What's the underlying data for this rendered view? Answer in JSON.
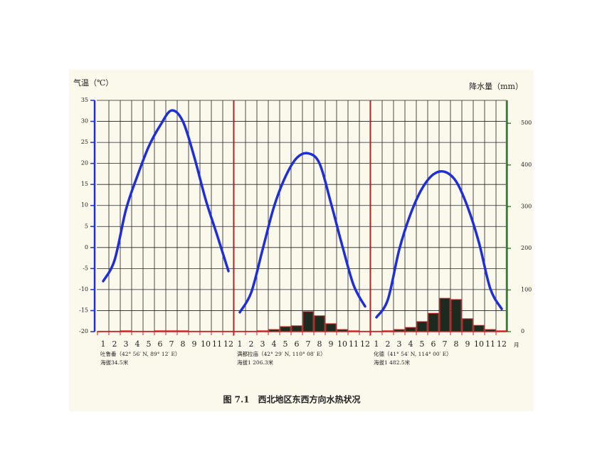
{
  "chart_data": {
    "type": "climograph",
    "title": "图 7.1　西北地区东西方向水热状况",
    "ylabel": "气温（℃）",
    "y2label": "降水量（mm）",
    "x_unit": "月",
    "ylim": [
      -20,
      35
    ],
    "yticks": [
      -20,
      -15,
      -10,
      -5,
      0,
      5,
      10,
      15,
      20,
      25,
      30,
      35
    ],
    "y2lim": [
      0,
      555
    ],
    "y2ticks": [
      0,
      100,
      200,
      300,
      400,
      500
    ],
    "temperature_color": "#1f2fd8",
    "precipitation_color": "#1c2a1f",
    "categories": [
      "1",
      "2",
      "3",
      "4",
      "5",
      "6",
      "7",
      "8",
      "9",
      "10",
      "11",
      "12"
    ],
    "panels": [
      {
        "label": "吐鲁番（42° 56′ N, 89° 12′ E）",
        "elevation": "海拔34.5米",
        "temperature": [
          -8,
          -3,
          9,
          17,
          24,
          29,
          32.6,
          30,
          21.5,
          11.4,
          3,
          -5.6
        ],
        "precipitation": [
          1,
          1,
          2,
          1,
          1,
          2,
          2,
          2,
          1,
          1,
          1,
          1
        ]
      },
      {
        "label": "满都拉庙（42° 29′ N, 110° 08′ E）",
        "elevation": "海拔1 206.3米",
        "temperature": [
          -15.4,
          -10.7,
          -0.5,
          9.7,
          16.8,
          21.3,
          22.4,
          20,
          10.6,
          0.4,
          -9,
          -14
        ],
        "precipitation": [
          1,
          1,
          2,
          5,
          12,
          14,
          48,
          38,
          19,
          5,
          2,
          1
        ]
      },
      {
        "label": "化德（41° 54′ N, 114° 00′ E）",
        "elevation": "海拔1 482.5米",
        "temperature": [
          -16.6,
          -12.4,
          -0.5,
          8,
          14,
          17.4,
          18,
          15.7,
          9.7,
          1.2,
          -9.8,
          -14.6
        ],
        "precipitation": [
          1,
          2,
          5,
          10,
          24,
          44,
          80,
          77,
          31,
          15,
          5,
          2
        ]
      }
    ]
  }
}
